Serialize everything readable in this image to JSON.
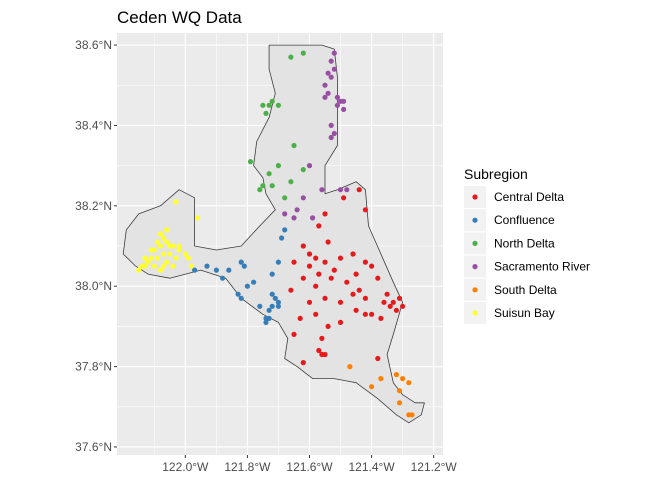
{
  "chart_data": {
    "type": "scatter",
    "title": "Ceden WQ Data",
    "xlabel": "",
    "ylabel": "",
    "xlim": [
      -122.22,
      -121.17
    ],
    "ylim": [
      37.58,
      38.63
    ],
    "grid": true,
    "background": "#ebebeb",
    "x_ticks": [
      {
        "value": -122.0,
        "label": "122.0°W"
      },
      {
        "value": -121.8,
        "label": "121.8°W"
      },
      {
        "value": -121.6,
        "label": "121.6°W"
      },
      {
        "value": -121.4,
        "label": "121.4°W"
      },
      {
        "value": -121.2,
        "label": "121.2°W"
      }
    ],
    "y_ticks": [
      {
        "value": 37.6,
        "label": "37.6°N"
      },
      {
        "value": 37.8,
        "label": "37.8°N"
      },
      {
        "value": 38.0,
        "label": "38.0°N"
      },
      {
        "value": 38.2,
        "label": "38.2°N"
      },
      {
        "value": 38.4,
        "label": "38.4°N"
      },
      {
        "value": 38.6,
        "label": "38.6°N"
      }
    ],
    "boundary": [
      [
        -121.73,
        38.6
      ],
      [
        -121.56,
        38.6
      ],
      [
        -121.52,
        38.59
      ],
      [
        -121.51,
        38.52
      ],
      [
        -121.51,
        38.35
      ],
      [
        -121.55,
        38.3
      ],
      [
        -121.55,
        38.23
      ],
      [
        -121.51,
        38.24
      ],
      [
        -121.45,
        38.26
      ],
      [
        -121.42,
        38.24
      ],
      [
        -121.41,
        38.15
      ],
      [
        -121.37,
        38.08
      ],
      [
        -121.33,
        38.01
      ],
      [
        -121.3,
        37.96
      ],
      [
        -121.33,
        37.88
      ],
      [
        -121.35,
        37.83
      ],
      [
        -121.33,
        37.76
      ],
      [
        -121.3,
        37.73
      ],
      [
        -121.26,
        37.71
      ],
      [
        -121.23,
        37.71
      ],
      [
        -121.24,
        37.68
      ],
      [
        -121.28,
        37.66
      ],
      [
        -121.32,
        37.68
      ],
      [
        -121.38,
        37.72
      ],
      [
        -121.45,
        37.76
      ],
      [
        -121.52,
        37.77
      ],
      [
        -121.59,
        37.77
      ],
      [
        -121.64,
        37.8
      ],
      [
        -121.68,
        37.82
      ],
      [
        -121.67,
        37.87
      ],
      [
        -121.7,
        37.91
      ],
      [
        -121.75,
        37.93
      ],
      [
        -121.82,
        37.97
      ],
      [
        -121.87,
        38.02
      ],
      [
        -121.95,
        38.04
      ],
      [
        -122.05,
        38.02
      ],
      [
        -122.12,
        38.03
      ],
      [
        -122.16,
        38.05
      ],
      [
        -122.2,
        38.08
      ],
      [
        -122.19,
        38.14
      ],
      [
        -122.15,
        38.18
      ],
      [
        -122.08,
        38.2
      ],
      [
        -122.02,
        38.24
      ],
      [
        -121.97,
        38.22
      ],
      [
        -121.97,
        38.1
      ],
      [
        -121.9,
        38.09
      ],
      [
        -121.82,
        38.1
      ],
      [
        -121.76,
        38.15
      ],
      [
        -121.71,
        38.19
      ],
      [
        -121.74,
        38.23
      ],
      [
        -121.75,
        38.27
      ],
      [
        -121.78,
        38.3
      ],
      [
        -121.77,
        38.36
      ],
      [
        -121.73,
        38.42
      ],
      [
        -121.71,
        38.48
      ],
      [
        -121.73,
        38.54
      ],
      [
        -121.73,
        38.6
      ]
    ],
    "series": [
      {
        "name": "Central Delta",
        "color": "#e41a1c",
        "points": [
          [
            -121.49,
            38.22
          ],
          [
            -121.44,
            38.24
          ],
          [
            -121.42,
            38.19
          ],
          [
            -121.55,
            38.18
          ],
          [
            -121.57,
            38.15
          ],
          [
            -121.54,
            38.11
          ],
          [
            -121.62,
            38.1
          ],
          [
            -121.6,
            38.08
          ],
          [
            -121.58,
            38.07
          ],
          [
            -121.65,
            38.06
          ],
          [
            -121.6,
            38.05
          ],
          [
            -121.55,
            38.06
          ],
          [
            -121.5,
            38.07
          ],
          [
            -121.46,
            38.08
          ],
          [
            -121.42,
            38.06
          ],
          [
            -121.52,
            38.04
          ],
          [
            -121.57,
            38.03
          ],
          [
            -121.62,
            38.02
          ],
          [
            -121.58,
            38.0
          ],
          [
            -121.53,
            38.02
          ],
          [
            -121.48,
            38.01
          ],
          [
            -121.45,
            38.03
          ],
          [
            -121.4,
            38.05
          ],
          [
            -121.38,
            38.02
          ],
          [
            -121.35,
            37.98
          ],
          [
            -121.33,
            37.96
          ],
          [
            -121.31,
            37.97
          ],
          [
            -121.3,
            37.95
          ],
          [
            -121.32,
            37.94
          ],
          [
            -121.34,
            37.95
          ],
          [
            -121.36,
            37.96
          ],
          [
            -121.42,
            37.97
          ],
          [
            -121.46,
            37.98
          ],
          [
            -121.5,
            37.96
          ],
          [
            -121.55,
            37.97
          ],
          [
            -121.6,
            37.96
          ],
          [
            -121.63,
            37.92
          ],
          [
            -121.58,
            37.93
          ],
          [
            -121.54,
            37.9
          ],
          [
            -121.5,
            37.91
          ],
          [
            -121.45,
            37.94
          ],
          [
            -121.4,
            37.93
          ],
          [
            -121.66,
            37.99
          ],
          [
            -121.65,
            37.88
          ],
          [
            -121.56,
            37.87
          ],
          [
            -121.57,
            37.84
          ],
          [
            -121.56,
            37.83
          ],
          [
            -121.55,
            37.83
          ],
          [
            -121.62,
            37.81
          ],
          [
            -121.38,
            37.82
          ],
          [
            -121.42,
            37.93
          ],
          [
            -121.37,
            37.92
          ],
          [
            -121.44,
            37.99
          ]
        ]
      },
      {
        "name": "Confluence",
        "color": "#377eb8",
        "points": [
          [
            -121.68,
            38.14
          ],
          [
            -121.69,
            38.12
          ],
          [
            -121.7,
            38.06
          ],
          [
            -121.72,
            38.03
          ],
          [
            -121.82,
            38.06
          ],
          [
            -121.81,
            38.05
          ],
          [
            -121.86,
            38.04
          ],
          [
            -121.93,
            38.05
          ],
          [
            -121.8,
            38.0
          ],
          [
            -121.78,
            38.01
          ],
          [
            -121.83,
            37.98
          ],
          [
            -121.82,
            37.97
          ],
          [
            -121.72,
            37.98
          ],
          [
            -121.71,
            37.97
          ],
          [
            -121.7,
            37.96
          ],
          [
            -121.72,
            37.95
          ],
          [
            -121.73,
            37.94
          ],
          [
            -121.74,
            37.92
          ],
          [
            -121.73,
            37.92
          ],
          [
            -121.74,
            37.91
          ],
          [
            -121.7,
            37.95
          ],
          [
            -121.76,
            37.95
          ],
          [
            -121.88,
            38.02
          ],
          [
            -121.9,
            38.04
          ],
          [
            -121.97,
            38.04
          ]
        ]
      },
      {
        "name": "North Delta",
        "color": "#4daf4a",
        "points": [
          [
            -121.66,
            38.57
          ],
          [
            -121.62,
            38.58
          ],
          [
            -121.72,
            38.46
          ],
          [
            -121.7,
            38.45
          ],
          [
            -121.73,
            38.45
          ],
          [
            -121.75,
            38.45
          ],
          [
            -121.74,
            38.43
          ],
          [
            -121.65,
            38.35
          ],
          [
            -121.79,
            38.31
          ],
          [
            -121.7,
            38.3
          ],
          [
            -121.62,
            38.29
          ],
          [
            -121.73,
            38.28
          ],
          [
            -121.75,
            38.25
          ],
          [
            -121.76,
            38.24
          ],
          [
            -121.72,
            38.25
          ],
          [
            -121.68,
            38.22
          ],
          [
            -121.66,
            38.26
          ]
        ]
      },
      {
        "name": "Sacramento River",
        "color": "#984ea3",
        "points": [
          [
            -121.52,
            38.58
          ],
          [
            -121.53,
            38.56
          ],
          [
            -121.52,
            38.54
          ],
          [
            -121.54,
            38.53
          ],
          [
            -121.53,
            38.52
          ],
          [
            -121.55,
            38.5
          ],
          [
            -121.54,
            38.48
          ],
          [
            -121.51,
            38.47
          ],
          [
            -121.49,
            38.46
          ],
          [
            -121.5,
            38.46
          ],
          [
            -121.51,
            38.45
          ],
          [
            -121.49,
            38.44
          ],
          [
            -121.55,
            38.47
          ],
          [
            -121.53,
            38.4
          ],
          [
            -121.52,
            38.38
          ],
          [
            -121.53,
            38.37
          ],
          [
            -121.6,
            38.3
          ],
          [
            -121.56,
            38.24
          ],
          [
            -121.48,
            38.24
          ],
          [
            -121.62,
            38.22
          ],
          [
            -121.64,
            38.19
          ],
          [
            -121.65,
            38.17
          ],
          [
            -121.59,
            38.17
          ],
          [
            -121.68,
            38.18
          ],
          [
            -121.5,
            38.24
          ]
        ]
      },
      {
        "name": "South Delta",
        "color": "#ff7f00",
        "points": [
          [
            -121.47,
            37.8
          ],
          [
            -121.37,
            37.77
          ],
          [
            -121.4,
            37.75
          ],
          [
            -121.32,
            37.78
          ],
          [
            -121.3,
            37.77
          ],
          [
            -121.31,
            37.74
          ],
          [
            -121.28,
            37.76
          ],
          [
            -121.31,
            37.71
          ],
          [
            -121.28,
            37.68
          ],
          [
            -121.27,
            37.68
          ]
        ]
      },
      {
        "name": "Suisun Bay",
        "color": "#ffff33",
        "points": [
          [
            -122.03,
            38.21
          ],
          [
            -121.96,
            38.17
          ],
          [
            -122.08,
            38.13
          ],
          [
            -122.07,
            38.12
          ],
          [
            -122.06,
            38.11
          ],
          [
            -122.09,
            38.11
          ],
          [
            -122.05,
            38.1
          ],
          [
            -122.04,
            38.1
          ],
          [
            -122.08,
            38.1
          ],
          [
            -122.1,
            38.09
          ],
          [
            -122.02,
            38.09
          ],
          [
            -122.0,
            38.08
          ],
          [
            -122.05,
            38.08
          ],
          [
            -122.07,
            38.08
          ],
          [
            -122.11,
            38.07
          ],
          [
            -122.09,
            38.07
          ],
          [
            -122.03,
            38.07
          ],
          [
            -121.99,
            38.07
          ],
          [
            -122.06,
            38.06
          ],
          [
            -122.12,
            38.06
          ],
          [
            -122.13,
            38.05
          ],
          [
            -122.14,
            38.05
          ],
          [
            -122.1,
            38.05
          ],
          [
            -122.07,
            38.05
          ],
          [
            -122.04,
            38.05
          ],
          [
            -121.98,
            38.05
          ],
          [
            -122.15,
            38.04
          ],
          [
            -122.08,
            38.04
          ],
          [
            -122.11,
            38.09
          ],
          [
            -122.06,
            38.14
          ],
          [
            -122.13,
            38.07
          ],
          [
            -122.02,
            38.1
          ]
        ]
      }
    ],
    "legend": {
      "title": "Subregion",
      "position": "right"
    }
  }
}
